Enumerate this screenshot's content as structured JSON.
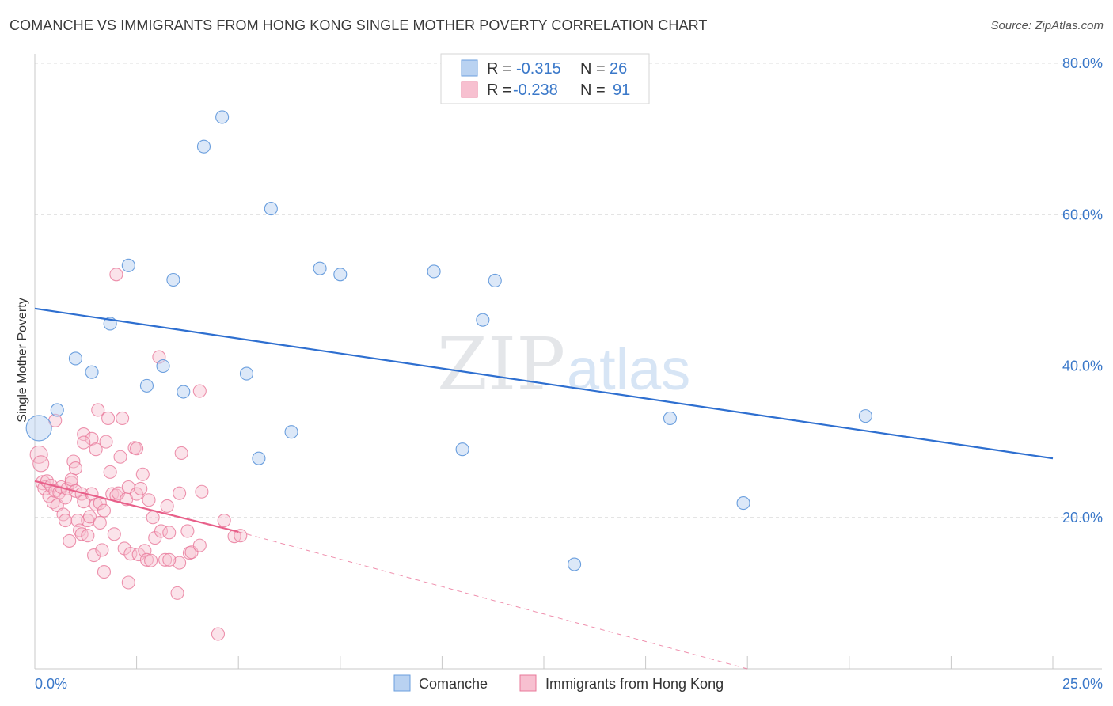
{
  "title": "COMANCHE VS IMMIGRANTS FROM HONG KONG SINGLE MOTHER POVERTY CORRELATION CHART",
  "source": "Source: ZipAtlas.com",
  "watermark": {
    "zip": "ZIP",
    "atlas": "atlas"
  },
  "colors": {
    "comanche": "#6b9fde",
    "comanche_fill": "#b9d2f1",
    "hk": "#e8789a",
    "hk_fill": "#f7c0d0",
    "blue_line": "#2e6fd0",
    "pink_line": "#e8608a",
    "tick_text": "#3a78c9"
  },
  "legend_top": {
    "rows": [
      {
        "r_label": "R =",
        "r_value": "-0.315",
        "n_label": "N =",
        "n_value": "26"
      },
      {
        "r_label": "R =",
        "r_value": "-0.238",
        "n_label": "N =",
        "n_value": "91"
      }
    ]
  },
  "legend_bottom": [
    "Comanche",
    "Immigrants from Hong Kong"
  ],
  "chart_data": {
    "type": "scatter",
    "title": "COMANCHE VS IMMIGRANTS FROM HONG KONG SINGLE MOTHER POVERTY CORRELATION CHART",
    "xlabel": "",
    "ylabel": "Single Mother Poverty",
    "xlim": [
      0,
      25
    ],
    "ylim": [
      0,
      80
    ],
    "x_tick_labels": [
      "0.0%",
      "25.0%"
    ],
    "y_tick_labels": [
      "20.0%",
      "40.0%",
      "60.0%",
      "80.0%"
    ],
    "y_ticks": [
      20,
      40,
      60,
      80
    ],
    "grid": true,
    "legend": "top-center",
    "series": [
      {
        "name": "Comanche",
        "r": -0.315,
        "n": 26,
        "trend": {
          "x": [
            0,
            25
          ],
          "y": [
            47.6,
            27.8
          ]
        },
        "points": [
          [
            0.1,
            31.8,
            16
          ],
          [
            0.55,
            34.2,
            8
          ],
          [
            1.0,
            41.0,
            8
          ],
          [
            1.4,
            39.2,
            8
          ],
          [
            1.85,
            45.6,
            8
          ],
          [
            2.3,
            53.3,
            8
          ],
          [
            2.75,
            37.4,
            8
          ],
          [
            3.15,
            40.0,
            8
          ],
          [
            3.4,
            51.4,
            8
          ],
          [
            3.65,
            36.6,
            8
          ],
          [
            4.15,
            69.0,
            8
          ],
          [
            4.6,
            72.9,
            8
          ],
          [
            5.2,
            39.0,
            8
          ],
          [
            5.5,
            27.8,
            8
          ],
          [
            5.8,
            60.8,
            8
          ],
          [
            6.3,
            31.3,
            8
          ],
          [
            7.0,
            52.9,
            8
          ],
          [
            7.5,
            52.1,
            8
          ],
          [
            9.8,
            52.5,
            8
          ],
          [
            10.5,
            29.0,
            8
          ],
          [
            11.0,
            46.1,
            8
          ],
          [
            11.3,
            51.3,
            8
          ],
          [
            13.25,
            13.8,
            8
          ],
          [
            15.6,
            33.1,
            8
          ],
          [
            17.4,
            21.9,
            8
          ],
          [
            20.4,
            33.4,
            8
          ]
        ]
      },
      {
        "name": "Immigrants from Hong Kong",
        "r": -0.238,
        "n": 91,
        "trend": {
          "x": [
            0,
            5.0
          ],
          "y": [
            24.8,
            18.1
          ]
        },
        "trend_dashed": {
          "x": [
            5.0,
            17.5
          ],
          "y": [
            18.1,
            0.0
          ]
        },
        "points": [
          [
            0.1,
            28.3,
            11
          ],
          [
            0.15,
            27.1,
            10
          ],
          [
            0.2,
            24.6,
            9
          ],
          [
            0.25,
            23.9,
            9
          ],
          [
            0.3,
            24.8,
            8
          ],
          [
            0.35,
            22.8,
            8
          ],
          [
            0.4,
            24.2,
            8
          ],
          [
            0.45,
            22.0,
            8
          ],
          [
            0.5,
            23.5,
            8
          ],
          [
            0.5,
            32.8,
            8
          ],
          [
            0.55,
            21.6,
            8
          ],
          [
            0.6,
            23.3,
            8
          ],
          [
            0.65,
            24.0,
            8
          ],
          [
            0.7,
            20.4,
            8
          ],
          [
            0.75,
            22.6,
            8
          ],
          [
            0.75,
            19.6,
            8
          ],
          [
            0.8,
            23.8,
            8
          ],
          [
            0.85,
            16.9,
            8
          ],
          [
            0.9,
            24.6,
            8
          ],
          [
            0.9,
            25.0,
            8
          ],
          [
            0.95,
            27.4,
            8
          ],
          [
            1.0,
            23.5,
            8
          ],
          [
            1.0,
            26.5,
            8
          ],
          [
            1.05,
            19.6,
            8
          ],
          [
            1.1,
            18.3,
            8
          ],
          [
            1.15,
            17.8,
            8
          ],
          [
            1.15,
            23.1,
            8
          ],
          [
            1.2,
            22.1,
            8
          ],
          [
            1.2,
            31.0,
            8
          ],
          [
            1.3,
            17.6,
            8
          ],
          [
            1.3,
            19.6,
            8
          ],
          [
            1.35,
            20.1,
            8
          ],
          [
            1.4,
            23.1,
            8
          ],
          [
            1.4,
            30.4,
            8
          ],
          [
            1.45,
            15.0,
            8
          ],
          [
            1.5,
            29.0,
            8
          ],
          [
            1.5,
            21.7,
            8
          ],
          [
            1.55,
            34.2,
            8
          ],
          [
            1.6,
            19.3,
            8
          ],
          [
            1.6,
            21.9,
            8
          ],
          [
            1.65,
            15.7,
            8
          ],
          [
            1.7,
            12.8,
            8
          ],
          [
            1.7,
            20.9,
            8
          ],
          [
            1.75,
            30.0,
            8
          ],
          [
            1.8,
            33.1,
            8
          ],
          [
            1.85,
            26.0,
            8
          ],
          [
            1.9,
            23.1,
            8
          ],
          [
            1.95,
            17.8,
            8
          ],
          [
            2.0,
            22.9,
            8
          ],
          [
            2.05,
            23.2,
            8
          ],
          [
            2.1,
            28.0,
            8
          ],
          [
            2.15,
            33.1,
            8
          ],
          [
            2.2,
            15.9,
            8
          ],
          [
            2.25,
            22.4,
            8
          ],
          [
            2.3,
            24.0,
            8
          ],
          [
            2.3,
            11.4,
            8
          ],
          [
            2.35,
            15.2,
            8
          ],
          [
            2.45,
            29.2,
            8
          ],
          [
            2.5,
            29.1,
            8
          ],
          [
            2.5,
            23.1,
            8
          ],
          [
            2.55,
            15.1,
            8
          ],
          [
            2.6,
            23.8,
            8
          ],
          [
            2.65,
            25.7,
            8
          ],
          [
            2.7,
            15.6,
            8
          ],
          [
            2.75,
            14.4,
            8
          ],
          [
            2.8,
            22.3,
            8
          ],
          [
            2.85,
            14.3,
            8
          ],
          [
            2.9,
            20.0,
            8
          ],
          [
            2.95,
            17.3,
            8
          ],
          [
            3.05,
            41.2,
            8
          ],
          [
            3.1,
            18.2,
            8
          ],
          [
            3.2,
            14.4,
            8
          ],
          [
            3.25,
            21.5,
            8
          ],
          [
            3.3,
            18.0,
            8
          ],
          [
            3.5,
            10.0,
            8
          ],
          [
            3.55,
            14.0,
            8
          ],
          [
            3.55,
            23.2,
            8
          ],
          [
            3.6,
            28.5,
            8
          ],
          [
            3.75,
            18.2,
            8
          ],
          [
            3.8,
            15.3,
            8
          ],
          [
            3.85,
            15.4,
            8
          ],
          [
            4.05,
            36.7,
            8
          ],
          [
            4.05,
            16.3,
            8
          ],
          [
            4.1,
            23.4,
            8
          ],
          [
            4.5,
            4.6,
            8
          ],
          [
            4.65,
            19.6,
            8
          ],
          [
            4.9,
            17.5,
            8
          ],
          [
            5.05,
            17.6,
            8
          ],
          [
            2.0,
            52.1,
            8
          ],
          [
            3.3,
            14.4,
            8
          ],
          [
            1.2,
            29.9,
            8
          ]
        ]
      }
    ]
  }
}
